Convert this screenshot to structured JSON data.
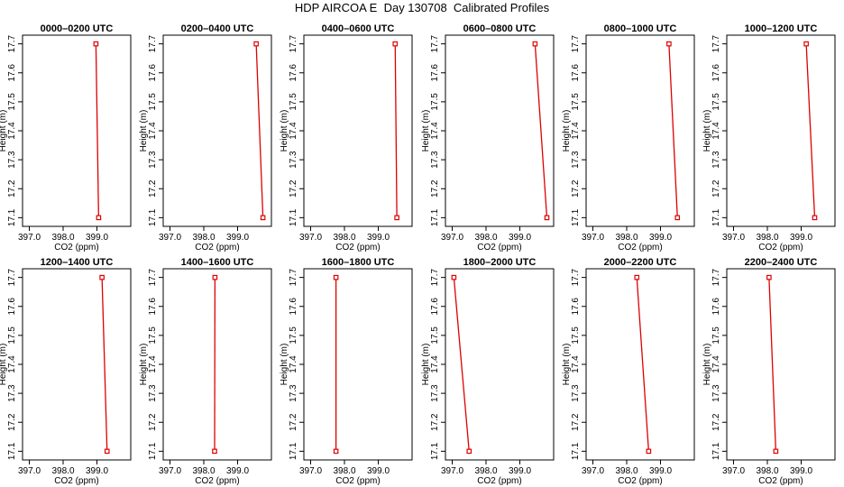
{
  "title": "HDP AIRCOA E  Day 130708  Calibrated Profiles",
  "colors": {
    "profile": "#dd0000",
    "axis": "#000000",
    "background": "#ffffff"
  },
  "chart_data": {
    "type": "line",
    "x_axis": {
      "label": "CO2 (ppm)",
      "lim": [
        396.8,
        400.0
      ],
      "ticks": [
        397.0,
        398.0,
        399.0
      ],
      "tick_labels": [
        "397.0",
        "398.0",
        "399.0"
      ]
    },
    "y_axis": {
      "label": "Height (m)",
      "lim": [
        17.07,
        17.73
      ],
      "ticks": [
        17.1,
        17.2,
        17.3,
        17.4,
        17.5,
        17.6,
        17.7
      ],
      "tick_labels": [
        "17.1",
        "17.2",
        "17.3",
        "17.4",
        "17.5",
        "17.6",
        "17.7"
      ]
    },
    "grid": false,
    "panels": [
      {
        "title": "0000–0200 UTC",
        "points": [
          {
            "co2": 399.05,
            "height": 17.1
          },
          {
            "co2": 398.97,
            "height": 17.7
          }
        ]
      },
      {
        "title": "0200–0400 UTC",
        "points": [
          {
            "co2": 399.75,
            "height": 17.1
          },
          {
            "co2": 399.55,
            "height": 17.7
          }
        ]
      },
      {
        "title": "0400–0600 UTC",
        "points": [
          {
            "co2": 399.55,
            "height": 17.1
          },
          {
            "co2": 399.5,
            "height": 17.7
          }
        ]
      },
      {
        "title": "0600–0800 UTC",
        "points": [
          {
            "co2": 399.8,
            "height": 17.1
          },
          {
            "co2": 399.45,
            "height": 17.7
          }
        ]
      },
      {
        "title": "0800–1000 UTC",
        "points": [
          {
            "co2": 399.5,
            "height": 17.1
          },
          {
            "co2": 399.25,
            "height": 17.7
          }
        ]
      },
      {
        "title": "1000–1200 UTC",
        "points": [
          {
            "co2": 399.4,
            "height": 17.1
          },
          {
            "co2": 399.15,
            "height": 17.7
          }
        ]
      },
      {
        "title": "1200–1400 UTC",
        "points": [
          {
            "co2": 399.3,
            "height": 17.1
          },
          {
            "co2": 399.15,
            "height": 17.7
          }
        ]
      },
      {
        "title": "1400–1600 UTC",
        "points": [
          {
            "co2": 398.32,
            "height": 17.1
          },
          {
            "co2": 398.33,
            "height": 17.7
          }
        ]
      },
      {
        "title": "1600–1800 UTC",
        "points": [
          {
            "co2": 397.75,
            "height": 17.1
          },
          {
            "co2": 397.75,
            "height": 17.7
          }
        ]
      },
      {
        "title": "1800–2000 UTC",
        "points": [
          {
            "co2": 397.5,
            "height": 17.1
          },
          {
            "co2": 397.05,
            "height": 17.7
          }
        ]
      },
      {
        "title": "2000–2200 UTC",
        "points": [
          {
            "co2": 398.65,
            "height": 17.1
          },
          {
            "co2": 398.3,
            "height": 17.7
          }
        ]
      },
      {
        "title": "2200–2400 UTC",
        "points": [
          {
            "co2": 398.25,
            "height": 17.1
          },
          {
            "co2": 398.05,
            "height": 17.7
          }
        ]
      }
    ]
  }
}
